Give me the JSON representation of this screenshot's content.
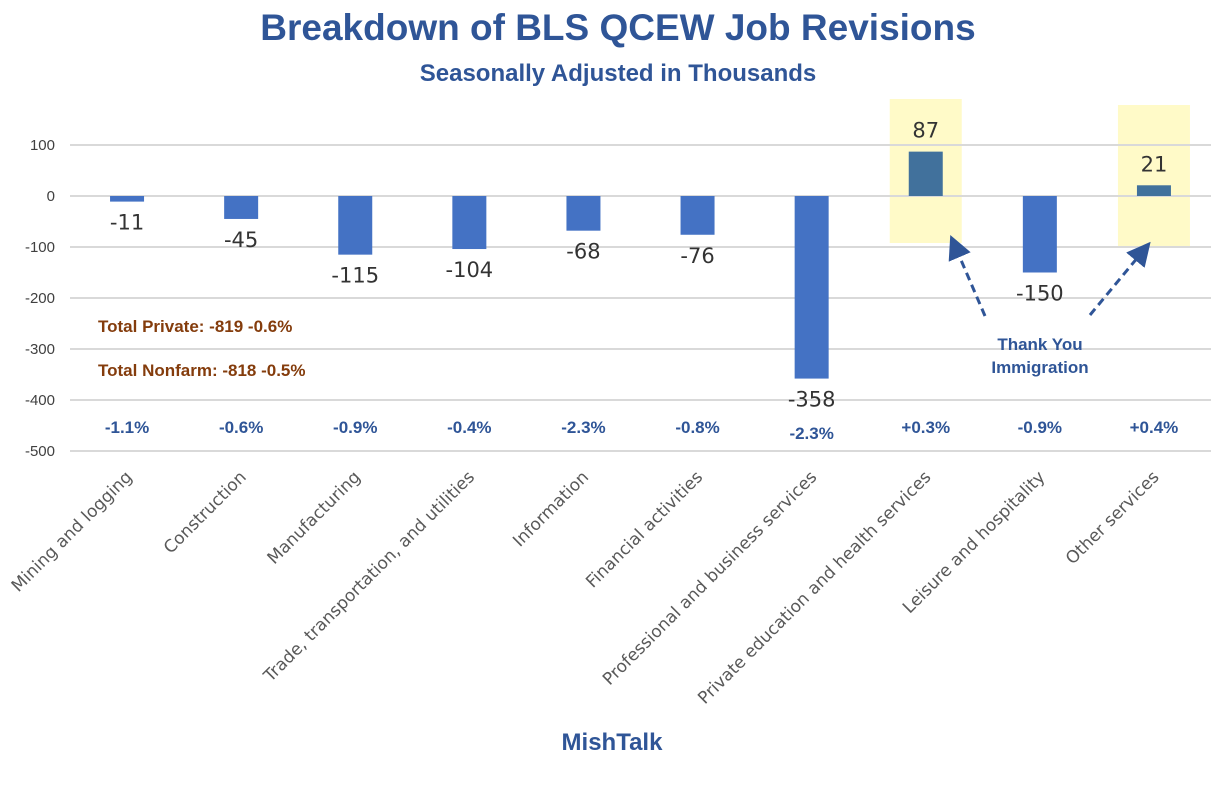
{
  "chart_data": {
    "type": "bar",
    "title": "Breakdown of BLS QCEW Job Revisions",
    "subtitle": "Seasonally Adjusted in Thousands",
    "categories": [
      "Mining and logging",
      "Construction",
      "Manufacturing",
      "Trade, transportation, and utilities",
      "Information",
      "Financial activities",
      "Professional and business services",
      "Private education and health services",
      "Leisure and hospitality",
      "Other services"
    ],
    "values": [
      -11,
      -45,
      -115,
      -104,
      -68,
      -76,
      -358,
      87,
      -150,
      21
    ],
    "data_labels": [
      "-11",
      "-45",
      "-115",
      "-104",
      "-68",
      "-76",
      "-358",
      "87",
      "-150",
      "21"
    ],
    "percent_labels": [
      "-1.1%",
      "-0.6%",
      "-0.9%",
      "-0.4%",
      "-2.3%",
      "-0.8%",
      "-2.3%",
      "+0.3%",
      "-0.9%",
      "+0.4%"
    ],
    "highlighted": [
      false,
      false,
      false,
      false,
      false,
      false,
      false,
      true,
      false,
      true
    ],
    "yticks": [
      "100",
      "0",
      "-100",
      "-200",
      "-300",
      "-400",
      "-500"
    ],
    "ytick_values": [
      100,
      0,
      -100,
      -200,
      -300,
      -400,
      -500
    ],
    "ylim": [
      -500,
      100
    ],
    "grid": true,
    "annotations": {
      "total_private": "Total Private: -819 -0.6%",
      "total_nonfarm": "Total Nonfarm: -818 -0.5%",
      "callout_line1": "Thank You",
      "callout_line2": "Immigration"
    },
    "source": "MishTalk",
    "colors": {
      "bar": "#4472C4",
      "highlight_bar": "#41719C",
      "highlight_box": "#FFFAC8",
      "title": "#2F5597",
      "totals": "#843C0C"
    }
  }
}
